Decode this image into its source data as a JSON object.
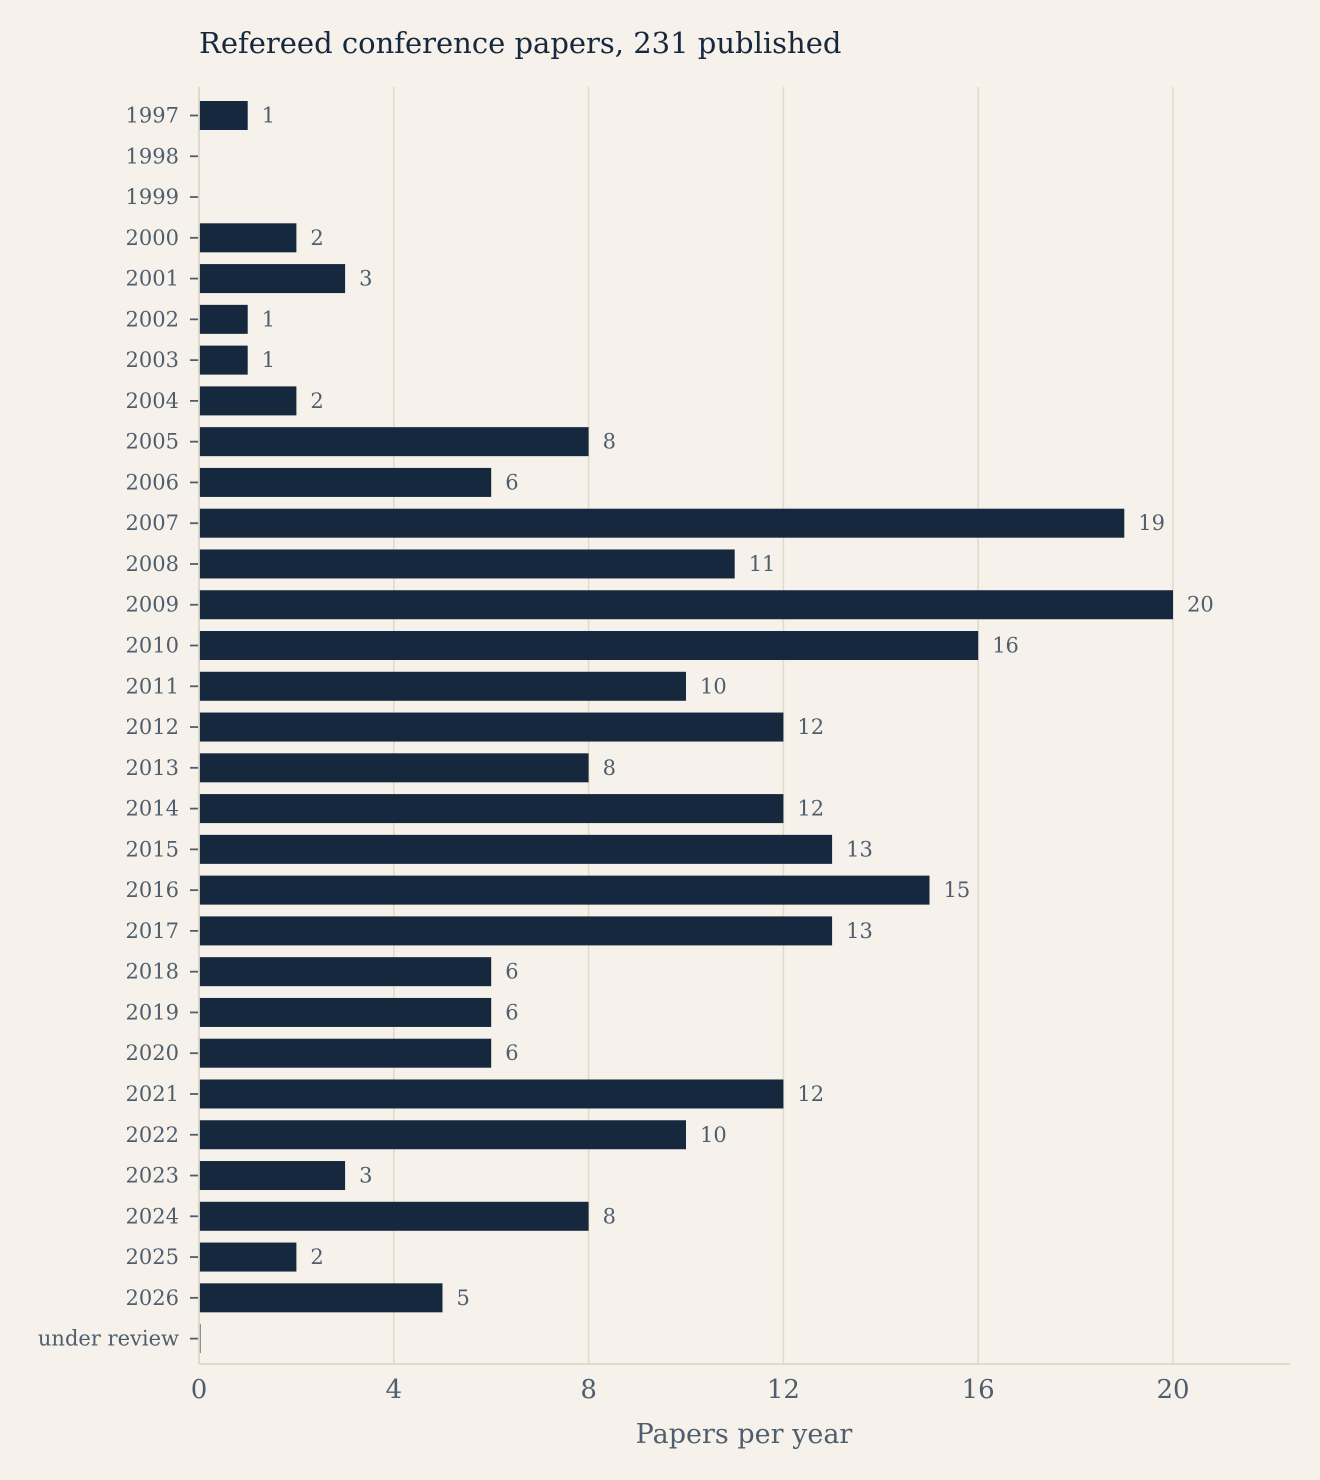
{
  "chart_data": {
    "type": "bar",
    "orientation": "horizontal",
    "title": "Refereed conference papers, 231 published",
    "xlabel": "Papers per year",
    "ylabel": "",
    "xlim": [
      0,
      22.4
    ],
    "xticks": [
      0,
      4,
      8,
      12,
      16,
      20
    ],
    "grid": "vertical",
    "categories": [
      "1997",
      "1998",
      "1999",
      "2000",
      "2001",
      "2002",
      "2003",
      "2004",
      "2005",
      "2006",
      "2007",
      "2008",
      "2009",
      "2010",
      "2011",
      "2012",
      "2013",
      "2014",
      "2015",
      "2016",
      "2017",
      "2018",
      "2019",
      "2020",
      "2021",
      "2022",
      "2023",
      "2024",
      "2025",
      "2026",
      "under review"
    ],
    "values": [
      1,
      0,
      0,
      2,
      3,
      1,
      1,
      2,
      8,
      6,
      19,
      11,
      20,
      16,
      10,
      12,
      8,
      12,
      13,
      15,
      13,
      6,
      6,
      6,
      12,
      10,
      3,
      8,
      2,
      5,
      0
    ],
    "data_labels": [
      "1",
      "",
      "",
      "2",
      "3",
      "1",
      "1",
      "2",
      "8",
      "6",
      "19",
      "11",
      "20",
      "16",
      "10",
      "12",
      "8",
      "12",
      "13",
      "15",
      "13",
      "6",
      "6",
      "6",
      "12",
      "10",
      "3",
      "8",
      "2",
      "5",
      ""
    ],
    "colors": {
      "bar": "#15283d",
      "background": "#f6f2eb",
      "grid": "#e0dccb",
      "text": "#4f5e6d",
      "title": "#15283d"
    }
  }
}
